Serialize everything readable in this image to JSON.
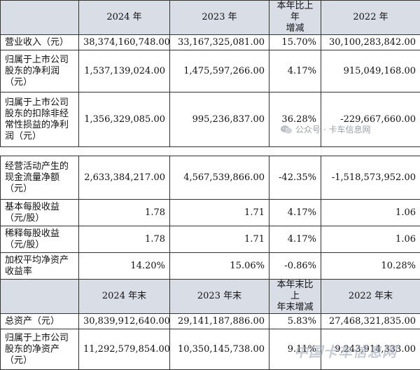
{
  "top_table": {
    "headers": [
      "",
      "2024 年",
      "2023 年",
      "本年比上年\n增减",
      "2022 年"
    ],
    "rows": [
      {
        "label": "营业收入（元）",
        "v2024": "38,374,160,748.00",
        "v2023": "33,167,325,081.00",
        "change": "15.70%",
        "v2022": "30,100,283,842.00"
      },
      {
        "label": "归属于上市公司\n股东的净利润\n（元）",
        "v2024": "1,537,139,024.00",
        "v2023": "1,475,597,266.00",
        "change": "4.17%",
        "v2022": "915,049,168.00"
      },
      {
        "label": "归属于上市公司\n股东的扣除非经\n常性损益的净利\n润（元）",
        "v2024": "1,356,329,085.00",
        "v2023": "995,236,837.00",
        "change": "36.28%",
        "v2022": "-229,667,660.00"
      }
    ]
  },
  "bottom_table": {
    "rows": [
      {
        "label": "经营活动产生的\n现金流量净额\n（元）",
        "v2024": "2,633,384,217.00",
        "v2023": "4,567,539,866.00",
        "change": "-42.35%",
        "v2022": "-1,518,573,952.00"
      },
      {
        "label": "基本每股收益\n（元/股）",
        "v2024": "1.78",
        "v2023": "1.71",
        "change": "4.17%",
        "v2022": "1.06"
      },
      {
        "label": "稀释每股收益\n（元/股）",
        "v2024": "1.78",
        "v2023": "1.71",
        "change": "4.17%",
        "v2022": "1.06"
      },
      {
        "label": "加权平均净资产\n收益率",
        "v2024": "14.20%",
        "v2023": "15.06%",
        "change": "-0.86%",
        "v2022": "10.28%"
      }
    ],
    "subheaders": [
      "",
      "2024 年末",
      "2023 年末",
      "本年末比上\n年末增减",
      "2022 年末"
    ],
    "rows2": [
      {
        "label": "总资产（元）",
        "v2024": "30,839,912,640.00",
        "v2023": "29,141,187,886.00",
        "change": "5.83%",
        "v2022": "27,468,321,835.00"
      },
      {
        "label": "归属于上市公司\n股东的净资产\n（元）",
        "v2024": "11,292,579,854.00",
        "v2023": "10,350,145,738.00",
        "change": "9.11%",
        "v2022": "9,243,914,333.00"
      }
    ]
  },
  "watermarks": {
    "wechat": "公众号 · 卡车信息网",
    "corner": "中国卡车信息网"
  }
}
